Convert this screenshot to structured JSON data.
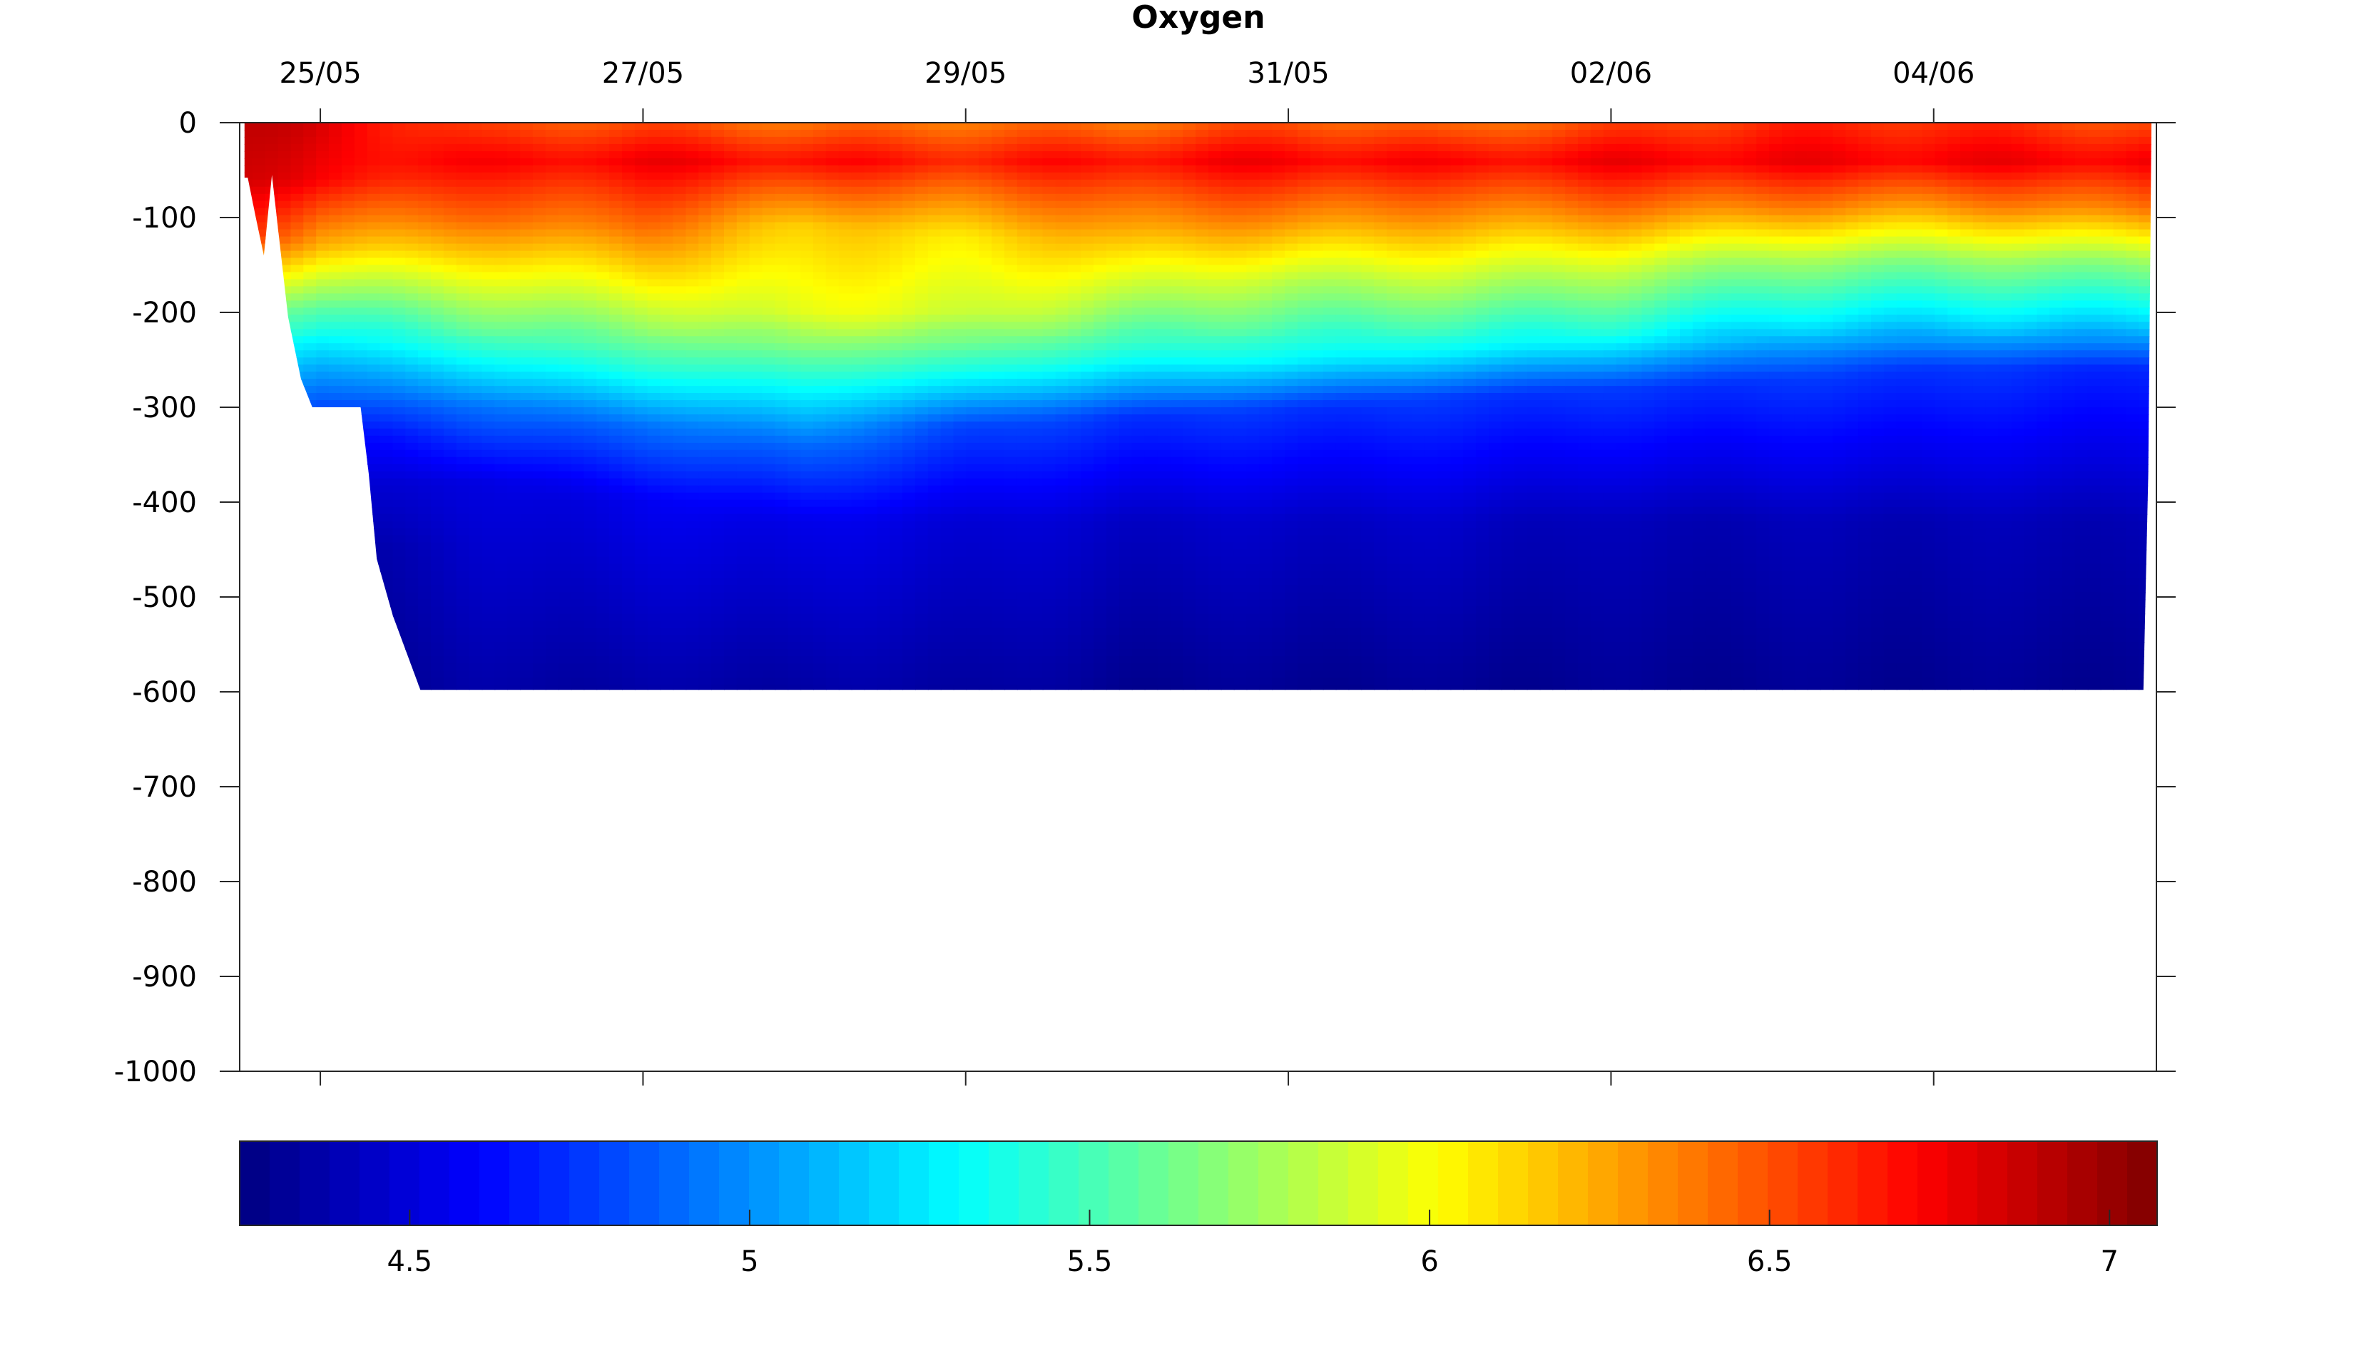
{
  "chart_data": {
    "type": "heatmap",
    "title": "Oxygen",
    "xlabel": "",
    "ylabel": "",
    "x_axis_position": "top",
    "x_ticks": [
      {
        "day": 0,
        "label": "25/05"
      },
      {
        "day": 2,
        "label": "27/05"
      },
      {
        "day": 4,
        "label": "29/05"
      },
      {
        "day": 6,
        "label": "31/05"
      },
      {
        "day": 8,
        "label": "02/06"
      },
      {
        "day": 10,
        "label": "04/06"
      }
    ],
    "xlim_days": [
      -0.5,
      11.5
    ],
    "x_data_end_day": 11.35,
    "ylim": [
      -1000,
      0
    ],
    "y_ticks": [
      0,
      -100,
      -200,
      -300,
      -400,
      -500,
      -600,
      -700,
      -800,
      -900,
      -1000
    ],
    "y_tick_labels": [
      "0",
      "-100",
      "-200",
      "-300",
      "-400",
      "-500",
      "-600",
      "-700",
      "-800",
      "-900",
      "-1000"
    ],
    "bottom_depth_profile": [
      {
        "day": -0.47,
        "depth": -58
      },
      {
        "day": -0.45,
        "depth": -58
      },
      {
        "day": -0.4,
        "depth": -100
      },
      {
        "day": -0.35,
        "depth": -140
      },
      {
        "day": -0.3,
        "depth": -55
      },
      {
        "day": -0.2,
        "depth": -205
      },
      {
        "day": -0.12,
        "depth": -270
      },
      {
        "day": -0.05,
        "depth": -300
      },
      {
        "day": 0.25,
        "depth": -300
      },
      {
        "day": 0.3,
        "depth": -370
      },
      {
        "day": 0.35,
        "depth": -460
      },
      {
        "day": 0.45,
        "depth": -520
      },
      {
        "day": 0.62,
        "depth": -598
      },
      {
        "day": 11.3,
        "depth": -598
      },
      {
        "day": 11.33,
        "depth": -370
      }
    ],
    "oxygen_profile_columns": [
      {
        "day": -0.5,
        "levels": [
          {
            "depth": 0,
            "value": 6.9
          },
          {
            "depth": -60,
            "value": 6.85
          },
          {
            "depth": -120,
            "value": 6.6
          },
          {
            "depth": -200,
            "value": 5.6
          },
          {
            "depth": -280,
            "value": 5.0
          },
          {
            "depth": -350,
            "value": 4.5
          },
          {
            "depth": -450,
            "value": 4.35
          },
          {
            "depth": -600,
            "value": 4.3
          }
        ]
      },
      {
        "day": 0.0,
        "levels": [
          {
            "depth": 0,
            "value": 6.8
          },
          {
            "depth": -60,
            "value": 6.7
          },
          {
            "depth": -130,
            "value": 6.2
          },
          {
            "depth": -200,
            "value": 5.5
          },
          {
            "depth": -260,
            "value": 5.05
          },
          {
            "depth": -330,
            "value": 4.6
          },
          {
            "depth": -450,
            "value": 4.35
          },
          {
            "depth": -600,
            "value": 4.3
          }
        ]
      },
      {
        "day": 1.0,
        "levels": [
          {
            "depth": 0,
            "value": 6.5
          },
          {
            "depth": -40,
            "value": 6.7
          },
          {
            "depth": -100,
            "value": 6.4
          },
          {
            "depth": -170,
            "value": 5.9
          },
          {
            "depth": -240,
            "value": 5.4
          },
          {
            "depth": -300,
            "value": 4.9
          },
          {
            "depth": -380,
            "value": 4.5
          },
          {
            "depth": -600,
            "value": 4.35
          }
        ]
      },
      {
        "day": 2.0,
        "levels": [
          {
            "depth": 0,
            "value": 6.5
          },
          {
            "depth": -40,
            "value": 6.75
          },
          {
            "depth": -110,
            "value": 6.4
          },
          {
            "depth": -180,
            "value": 5.95
          },
          {
            "depth": -260,
            "value": 5.4
          },
          {
            "depth": -320,
            "value": 4.9
          },
          {
            "depth": -400,
            "value": 4.55
          },
          {
            "depth": -600,
            "value": 4.35
          }
        ]
      },
      {
        "day": 3.0,
        "levels": [
          {
            "depth": 0,
            "value": 6.4
          },
          {
            "depth": -40,
            "value": 6.7
          },
          {
            "depth": -110,
            "value": 6.15
          },
          {
            "depth": -200,
            "value": 5.95
          },
          {
            "depth": -270,
            "value": 5.4
          },
          {
            "depth": -340,
            "value": 4.9
          },
          {
            "depth": -420,
            "value": 4.55
          },
          {
            "depth": -600,
            "value": 4.35
          }
        ]
      },
      {
        "day": 4.0,
        "levels": [
          {
            "depth": 0,
            "value": 6.4
          },
          {
            "depth": -40,
            "value": 6.65
          },
          {
            "depth": -120,
            "value": 6.1
          },
          {
            "depth": -200,
            "value": 5.9
          },
          {
            "depth": -260,
            "value": 5.4
          },
          {
            "depth": -320,
            "value": 4.8
          },
          {
            "depth": -420,
            "value": 4.5
          },
          {
            "depth": -600,
            "value": 4.35
          }
        ]
      },
      {
        "day": 5.0,
        "levels": [
          {
            "depth": 0,
            "value": 6.4
          },
          {
            "depth": -40,
            "value": 6.7
          },
          {
            "depth": -110,
            "value": 6.3
          },
          {
            "depth": -180,
            "value": 5.85
          },
          {
            "depth": -250,
            "value": 5.35
          },
          {
            "depth": -310,
            "value": 4.75
          },
          {
            "depth": -420,
            "value": 4.45
          },
          {
            "depth": -600,
            "value": 4.3
          }
        ]
      },
      {
        "day": 6.0,
        "levels": [
          {
            "depth": 0,
            "value": 6.5
          },
          {
            "depth": -40,
            "value": 6.75
          },
          {
            "depth": -100,
            "value": 6.35
          },
          {
            "depth": -170,
            "value": 5.8
          },
          {
            "depth": -250,
            "value": 5.3
          },
          {
            "depth": -300,
            "value": 4.75
          },
          {
            "depth": -420,
            "value": 4.45
          },
          {
            "depth": -600,
            "value": 4.3
          }
        ]
      },
      {
        "day": 7.0,
        "levels": [
          {
            "depth": 0,
            "value": 6.4
          },
          {
            "depth": -40,
            "value": 6.7
          },
          {
            "depth": -100,
            "value": 6.3
          },
          {
            "depth": -170,
            "value": 5.8
          },
          {
            "depth": -240,
            "value": 5.3
          },
          {
            "depth": -290,
            "value": 4.75
          },
          {
            "depth": -420,
            "value": 4.45
          },
          {
            "depth": -600,
            "value": 4.3
          }
        ]
      },
      {
        "day": 8.0,
        "levels": [
          {
            "depth": 0,
            "value": 6.5
          },
          {
            "depth": -40,
            "value": 6.75
          },
          {
            "depth": -90,
            "value": 6.4
          },
          {
            "depth": -160,
            "value": 5.8
          },
          {
            "depth": -230,
            "value": 5.3
          },
          {
            "depth": -280,
            "value": 4.75
          },
          {
            "depth": -420,
            "value": 4.4
          },
          {
            "depth": -600,
            "value": 4.3
          }
        ]
      },
      {
        "day": 9.0,
        "levels": [
          {
            "depth": 0,
            "value": 6.6
          },
          {
            "depth": -40,
            "value": 6.75
          },
          {
            "depth": -90,
            "value": 6.35
          },
          {
            "depth": -150,
            "value": 5.7
          },
          {
            "depth": -210,
            "value": 5.25
          },
          {
            "depth": -270,
            "value": 4.75
          },
          {
            "depth": -420,
            "value": 4.4
          },
          {
            "depth": -600,
            "value": 4.3
          }
        ]
      },
      {
        "day": 10.0,
        "levels": [
          {
            "depth": 0,
            "value": 6.6
          },
          {
            "depth": -40,
            "value": 6.75
          },
          {
            "depth": -90,
            "value": 6.3
          },
          {
            "depth": -150,
            "value": 5.65
          },
          {
            "depth": -210,
            "value": 5.2
          },
          {
            "depth": -260,
            "value": 4.75
          },
          {
            "depth": -420,
            "value": 4.4
          },
          {
            "depth": -600,
            "value": 4.3
          }
        ]
      },
      {
        "day": 11.35,
        "levels": [
          {
            "depth": 0,
            "value": 6.5
          },
          {
            "depth": -40,
            "value": 6.75
          },
          {
            "depth": -90,
            "value": 6.4
          },
          {
            "depth": -150,
            "value": 5.7
          },
          {
            "depth": -210,
            "value": 5.2
          },
          {
            "depth": -260,
            "value": 4.7
          },
          {
            "depth": -420,
            "value": 4.4
          },
          {
            "depth": -600,
            "value": 4.3
          }
        ]
      }
    ],
    "colorbar": {
      "range": [
        4.25,
        7.07
      ],
      "ticks": [
        4.5,
        5,
        5.5,
        6,
        6.5,
        7
      ],
      "tick_labels": [
        "4.5",
        "5",
        "5.5",
        "6",
        "6.5",
        "7"
      ],
      "colormap": "jet",
      "placement": "bottom"
    },
    "grid": false,
    "legend": false
  }
}
